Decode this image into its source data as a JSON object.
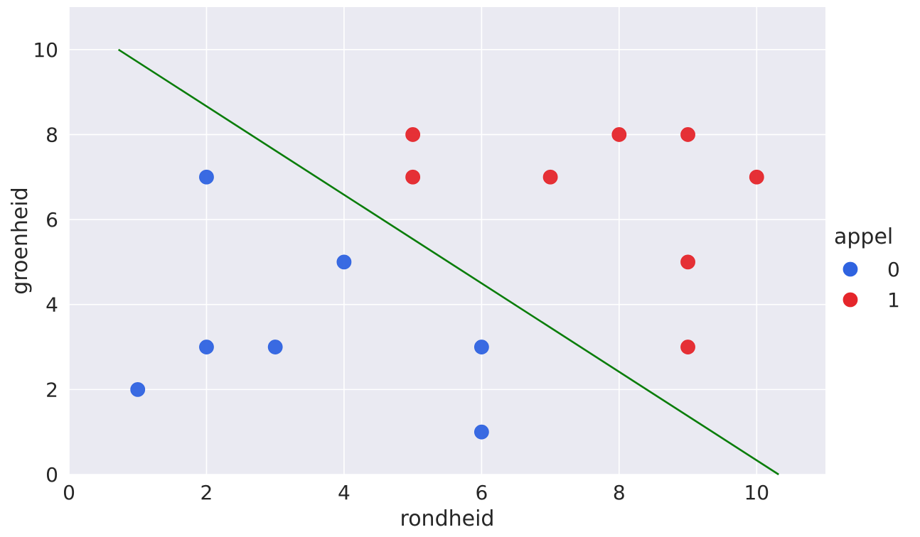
{
  "chart_data": {
    "type": "scatter",
    "xlabel": "rondheid",
    "ylabel": "groenheid",
    "xlim": [
      0,
      11
    ],
    "ylim": [
      0,
      11
    ],
    "xticks": [
      "0",
      "2",
      "4",
      "6",
      "8",
      "10"
    ],
    "yticks": [
      "0",
      "2",
      "4",
      "6",
      "8",
      "10"
    ],
    "grid": true,
    "legend": {
      "title": "appel",
      "placement": "right"
    },
    "series": [
      {
        "name": "0",
        "color": "#2f63e0",
        "points": [
          [
            1,
            2
          ],
          [
            2,
            3
          ],
          [
            2,
            7
          ],
          [
            3,
            3
          ],
          [
            4,
            5
          ],
          [
            6,
            1
          ],
          [
            6,
            3
          ]
        ]
      },
      {
        "name": "1",
        "color": "#e5262b",
        "points": [
          [
            5,
            7
          ],
          [
            5,
            8
          ],
          [
            7,
            7
          ],
          [
            8,
            8
          ],
          [
            9,
            3
          ],
          [
            9,
            5
          ],
          [
            9,
            8
          ],
          [
            10,
            7
          ]
        ]
      }
    ],
    "line": {
      "color": "#0a7d0a",
      "points": [
        [
          0.72,
          10.0
        ],
        [
          10.32,
          0.0
        ]
      ]
    }
  },
  "style": {
    "background": "#eaeaf2",
    "grid_color": "#ffffff",
    "text_color": "#262626"
  }
}
